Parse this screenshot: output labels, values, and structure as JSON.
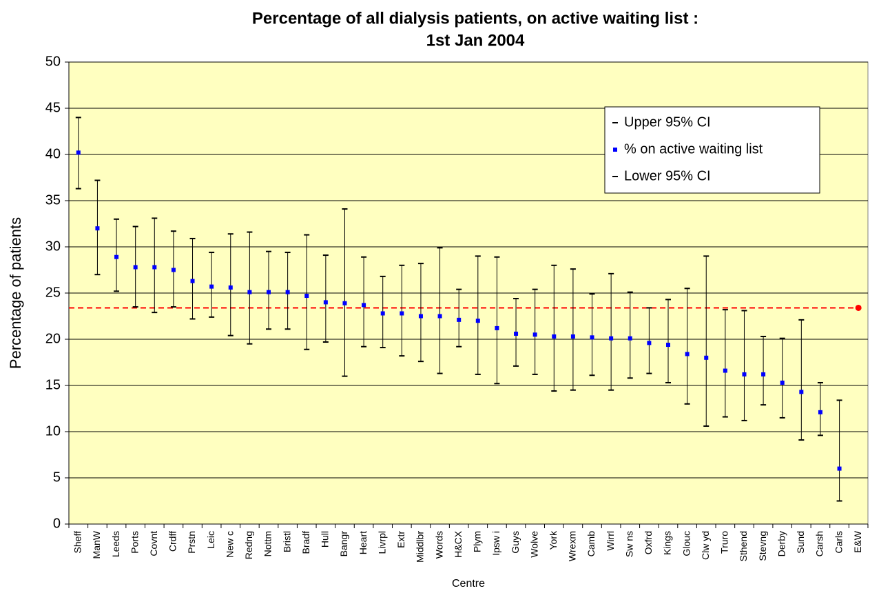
{
  "chart_data": {
    "type": "errorbar",
    "title": [
      "Percentage of all dialysis patients, on active waiting list :",
      "1st Jan 2004"
    ],
    "x_label": "Centre",
    "y_label": "Percentage of patients",
    "categories": [
      "Sheff",
      "ManW",
      "Leeds",
      "Ports",
      "Covnt",
      "Crdff",
      "Prstn",
      "Leic",
      "New c",
      "Redng",
      "Nottm",
      "Bristl",
      "Bradf",
      "Hull",
      "Bangr",
      "Heart",
      "Livrpl",
      "Extr",
      "Middlbr",
      "Words",
      "H&CX",
      "Plym",
      "Ipsw i",
      "Guys",
      "Wolve",
      "York",
      "Wrexm",
      "Camb",
      "Wirrl",
      "Sw ns",
      "Oxfrd",
      "Kings",
      "Glouc",
      "Clw yd",
      "Truro",
      "Sthend",
      "Stevng",
      "Derby",
      "Sund",
      "Carsh",
      "Carls",
      "E&W"
    ],
    "series": [
      {
        "name": "Upper 95% CI",
        "color": "#000000",
        "values": [
          44,
          37.2,
          33,
          32.2,
          33.1,
          31.7,
          30.9,
          29.4,
          31.4,
          31.6,
          29.5,
          29.4,
          31.3,
          29.1,
          34.1,
          28.9,
          26.8,
          28,
          28.2,
          29.9,
          25.4,
          29,
          28.9,
          24.4,
          25.4,
          28,
          27.6,
          24.9,
          27.1,
          25.1,
          23.4,
          24.3,
          25.5,
          29,
          23.2,
          23.1,
          20.3,
          20.1,
          22.1,
          15.3,
          13.4,
          null
        ]
      },
      {
        "name": "% on active waiting list",
        "color": "#0000ff",
        "values": [
          40.2,
          32,
          28.9,
          27.8,
          27.8,
          27.5,
          26.3,
          25.7,
          25.6,
          25.1,
          25.1,
          25.1,
          24.7,
          24,
          23.9,
          23.7,
          22.8,
          22.8,
          22.5,
          22.5,
          22.1,
          22,
          21.2,
          20.6,
          20.5,
          20.3,
          20.3,
          20.2,
          20.1,
          20.1,
          19.6,
          19.4,
          18.4,
          18,
          16.6,
          16.2,
          16.2,
          15.3,
          14.3,
          12.1,
          6,
          null
        ]
      },
      {
        "name": "Lower 95% CI",
        "color": "#000000",
        "values": [
          36.3,
          27,
          25.2,
          23.5,
          22.9,
          23.5,
          22.2,
          22.4,
          20.4,
          19.5,
          21.1,
          21.1,
          18.9,
          19.7,
          16,
          19.2,
          19.1,
          18.2,
          17.6,
          16.3,
          19.2,
          16.2,
          15.2,
          17.1,
          16.2,
          14.4,
          14.5,
          16.1,
          14.5,
          15.8,
          16.3,
          15.3,
          13,
          10.6,
          11.6,
          11.2,
          12.9,
          11.5,
          9.1,
          9.6,
          2.5,
          null
        ]
      }
    ],
    "reference": {
      "value": 23.4,
      "color": "#ff0000"
    },
    "ylim": [
      0,
      50
    ],
    "yticks": [
      0,
      5,
      10,
      15,
      20,
      25,
      30,
      35,
      40,
      45,
      50
    ],
    "grid": true,
    "plot_background": "#ffffc0"
  }
}
